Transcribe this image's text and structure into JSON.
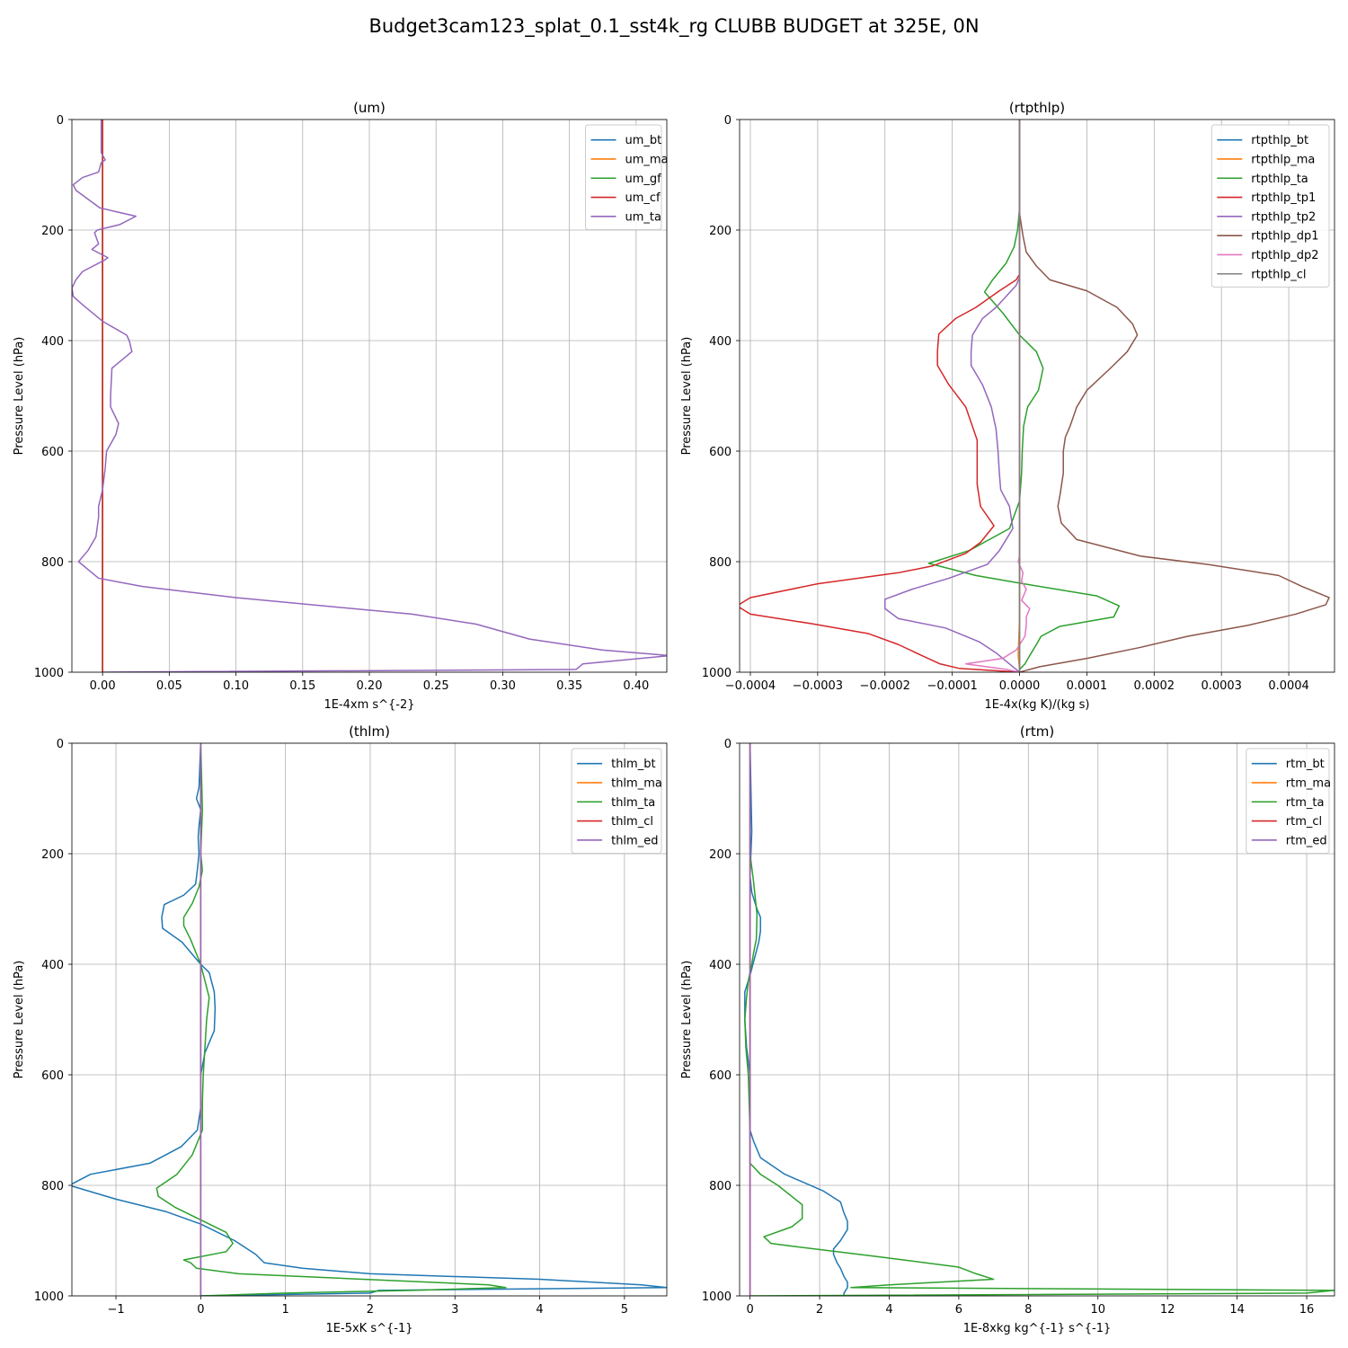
{
  "figure": {
    "suptitle": "Budget3cam123_splat_0.1_sst4k_rg CLUBB BUDGET at 325E, 0N"
  },
  "chart_data": [
    {
      "id": "um",
      "type": "line",
      "title": "(um)",
      "xlabel": "1E-4xm s^{-2}",
      "ylabel": "Pressure Level (hPa)",
      "xlim": [
        -0.023,
        0.423
      ],
      "ylim": [
        1000,
        0
      ],
      "xticks": [
        0.0,
        0.05,
        0.1,
        0.15,
        0.2,
        0.25,
        0.3,
        0.35,
        0.4
      ],
      "xtick_labels": [
        "0.00",
        "0.05",
        "0.10",
        "0.15",
        "0.20",
        "0.25",
        "0.30",
        "0.35",
        "0.40"
      ],
      "yticks": [
        0,
        200,
        400,
        600,
        800,
        1000
      ],
      "ytick_labels": [
        "0",
        "200",
        "400",
        "600",
        "800",
        "1000"
      ],
      "grid": true,
      "legend": "top-right",
      "series": [
        {
          "name": "um_bt",
          "color": "#1f77b4",
          "y": [
            0,
            1000
          ],
          "x": [
            0,
            0
          ]
        },
        {
          "name": "um_ma",
          "color": "#ff7f0e",
          "y": [
            0,
            1000
          ],
          "x": [
            0,
            0
          ]
        },
        {
          "name": "um_gf",
          "color": "#2ca02c",
          "y": [
            0,
            1000
          ],
          "x": [
            0,
            0
          ]
        },
        {
          "name": "um_cf",
          "color": "#d62728",
          "y": [
            0,
            1000
          ],
          "x": [
            0,
            0
          ]
        },
        {
          "name": "um_ta",
          "color": "#9467bd",
          "y": [
            0,
            60,
            73,
            78,
            95,
            105,
            118,
            128,
            160,
            175,
            190,
            200,
            205,
            225,
            235,
            250,
            255,
            275,
            290,
            305,
            320,
            335,
            365,
            390,
            400,
            420,
            450,
            500,
            520,
            550,
            570,
            600,
            630,
            670,
            700,
            720,
            755,
            780,
            800,
            830,
            845,
            865,
            895,
            913,
            940,
            960,
            970,
            985,
            995,
            1000
          ],
          "x": [
            -0.001,
            -0.001,
            0.002,
            -0.001,
            -0.003,
            -0.015,
            -0.022,
            -0.02,
            -0.002,
            0.025,
            0.013,
            -0.004,
            -0.006,
            -0.003,
            -0.008,
            0.004,
            0.001,
            -0.015,
            -0.02,
            -0.023,
            -0.022,
            -0.015,
            0.0,
            0.018,
            0.02,
            0.022,
            0.007,
            0.006,
            0.006,
            0.012,
            0.01,
            0.003,
            0.002,
            0.0,
            -0.003,
            -0.003,
            -0.005,
            -0.011,
            -0.018,
            -0.003,
            0.03,
            0.1,
            0.232,
            0.28,
            0.32,
            0.375,
            0.425,
            0.36,
            0.355,
            0.0
          ]
        }
      ]
    },
    {
      "id": "rtpthlp",
      "type": "line",
      "title": "(rtpthlp)",
      "xlabel": "1E-4x(kg K)/(kg s)",
      "ylabel": "Pressure Level (hPa)",
      "xlim": [
        -0.000416,
        0.000468
      ],
      "ylim": [
        1000,
        0
      ],
      "xticks": [
        -0.0004,
        -0.0003,
        -0.0002,
        -0.0001,
        0.0,
        0.0001,
        0.0002,
        0.0003,
        0.0004
      ],
      "xtick_labels": [
        "−0.0004",
        "−0.0003",
        "−0.0002",
        "−0.0001",
        "0.0000",
        "0.0001",
        "0.0002",
        "0.0003",
        "0.0004"
      ],
      "yticks": [
        0,
        200,
        400,
        600,
        800,
        1000
      ],
      "ytick_labels": [
        "0",
        "200",
        "400",
        "600",
        "800",
        "1000"
      ],
      "grid": true,
      "legend": "top-right",
      "series": [
        {
          "name": "rtpthlp_bt",
          "color": "#1f77b4",
          "y": [
            0,
            1000
          ],
          "x": [
            0,
            0
          ]
        },
        {
          "name": "rtpthlp_ma",
          "color": "#ff7f0e",
          "y": [
            0,
            830,
            900,
            970,
            995,
            1000
          ],
          "x": [
            0,
            0,
            0,
            -2e-06,
            0,
            0
          ]
        },
        {
          "name": "rtpthlp_ta",
          "color": "#2ca02c",
          "y": [
            0,
            160,
            200,
            230,
            260,
            290,
            312,
            350,
            390,
            420,
            450,
            490,
            520,
            555,
            600,
            640,
            690,
            740,
            780,
            803,
            825,
            840,
            862,
            880,
            900,
            917,
            935,
            950,
            970,
            985,
            995,
            1000
          ],
          "x": [
            0,
            0,
            -3e-06,
            -8e-06,
            -2e-05,
            -4e-05,
            -5.2e-05,
            -2.5e-05,
            0.0,
            2.5e-05,
            3.5e-05,
            2.8e-05,
            1.2e-05,
            6e-06,
            4e-06,
            3e-06,
            0.0,
            -1.5e-05,
            -7.5e-05,
            -0.000135,
            -6.5e-05,
            6e-06,
            0.000115,
            0.000148,
            0.00014,
            6e-05,
            3.2e-05,
            2.5e-05,
            1.5e-05,
            8e-06,
            0.0,
            0.0
          ]
        },
        {
          "name": "rtpthlp_tp1",
          "color": "#d62728",
          "y": [
            0,
            280,
            290,
            310,
            340,
            360,
            388,
            420,
            445,
            480,
            520,
            580,
            620,
            660,
            700,
            735,
            765,
            785,
            808,
            820,
            840,
            865,
            880,
            895,
            912,
            930,
            950,
            970,
            985,
            993,
            1000
          ],
          "x": [
            0,
            0,
            -5e-06,
            -3e-05,
            -6.5e-05,
            -9.5e-05,
            -0.00012,
            -0.000122,
            -0.000122,
            -0.000105,
            -8e-05,
            -6.3e-05,
            -6.3e-05,
            -6.3e-05,
            -5.8e-05,
            -3.8e-05,
            -5.8e-05,
            -8e-05,
            -0.00013,
            -0.00018,
            -0.0003,
            -0.0004,
            -0.00042,
            -0.0004,
            -0.00031,
            -0.000225,
            -0.00018,
            -0.000145,
            -0.000118,
            -9e-05,
            0.0
          ]
        },
        {
          "name": "rtpthlp_tp2",
          "color": "#9467bd",
          "y": [
            0,
            285,
            300,
            340,
            360,
            390,
            420,
            445,
            480,
            520,
            560,
            600,
            640,
            670,
            700,
            740,
            780,
            805,
            830,
            850,
            868,
            885,
            903,
            920,
            945,
            965,
            985,
            995,
            1000
          ],
          "x": [
            0,
            0,
            -5e-06,
            -3.5e-05,
            -5.5e-05,
            -7e-05,
            -7.2e-05,
            -7.2e-05,
            -5.5e-05,
            -4.2e-05,
            -3.5e-05,
            -3.2e-05,
            -3e-05,
            -2.8e-05,
            -1.5e-05,
            -1e-05,
            -3e-05,
            -4.8e-05,
            -0.000105,
            -0.00016,
            -0.0002,
            -0.0002,
            -0.00018,
            -0.00011,
            -6e-05,
            -3.5e-05,
            -1.5e-05,
            -5e-06,
            0.0
          ]
        },
        {
          "name": "rtpthlp_dp1",
          "color": "#8c564b",
          "y": [
            0,
            170,
            210,
            240,
            265,
            290,
            310,
            340,
            370,
            390,
            420,
            450,
            490,
            520,
            555,
            575,
            600,
            640,
            680,
            700,
            730,
            760,
            790,
            805,
            825,
            845,
            865,
            878,
            895,
            915,
            935,
            955,
            975,
            990,
            1000
          ],
          "x": [
            0,
            0,
            5e-06,
            1e-05,
            2.5e-05,
            4.5e-05,
            0.0001,
            0.000145,
            0.000168,
            0.000175,
            0.00016,
            0.000135,
            0.0001,
            8.5e-05,
            7.5e-05,
            6.8e-05,
            6.5e-05,
            6.5e-05,
            6e-05,
            5.7e-05,
            6.2e-05,
            8.5e-05,
            0.00018,
            0.00028,
            0.000385,
            0.00042,
            0.00046,
            0.000455,
            0.00041,
            0.00034,
            0.00025,
            0.00018,
            0.0001,
            3e-05,
            0.0
          ]
        },
        {
          "name": "rtpthlp_dp2",
          "color": "#e377c2",
          "y": [
            0,
            790,
            800,
            820,
            835,
            850,
            870,
            885,
            900,
            915,
            935,
            960,
            975,
            985,
            995,
            1000
          ],
          "x": [
            0,
            0,
            -2e-06,
            5e-06,
            3e-06,
            1e-05,
            3e-06,
            1.5e-05,
            1e-05,
            1e-05,
            8e-06,
            -5e-06,
            -2.5e-05,
            -8e-05,
            -2e-05,
            0.0
          ]
        },
        {
          "name": "rtpthlp_cl",
          "color": "#7f7f7f",
          "y": [
            0,
            1000
          ],
          "x": [
            0,
            0
          ]
        }
      ]
    },
    {
      "id": "thlm",
      "type": "line",
      "title": "(thlm)",
      "xlabel": "1E-5xK s^{-1}",
      "ylabel": "Pressure Level (hPa)",
      "xlim": [
        -1.52,
        5.5
      ],
      "ylim": [
        1000,
        0
      ],
      "xticks": [
        -1,
        0,
        1,
        2,
        3,
        4,
        5
      ],
      "xtick_labels": [
        "−1",
        "0",
        "1",
        "2",
        "3",
        "4",
        "5"
      ],
      "yticks": [
        0,
        200,
        400,
        600,
        800,
        1000
      ],
      "ytick_labels": [
        "0",
        "200",
        "400",
        "600",
        "800",
        "1000"
      ],
      "grid": true,
      "legend": "top-right",
      "series": [
        {
          "name": "thlm_bt",
          "color": "#1f77b4",
          "y": [
            0,
            80,
            100,
            120,
            150,
            170,
            200,
            230,
            255,
            275,
            292,
            315,
            335,
            360,
            400,
            415,
            450,
            480,
            520,
            560,
            600,
            660,
            700,
            730,
            760,
            780,
            800,
            825,
            848,
            870,
            900,
            925,
            940,
            950,
            960,
            970,
            980,
            985,
            990,
            995,
            1000
          ],
          "x": [
            0,
            -0.02,
            -0.05,
            0.0,
            -0.02,
            -0.03,
            -0.02,
            -0.04,
            -0.06,
            -0.2,
            -0.43,
            -0.46,
            -0.45,
            -0.22,
            0.0,
            0.1,
            0.16,
            0.17,
            0.16,
            0.05,
            0.0,
            0.0,
            -0.04,
            -0.23,
            -0.6,
            -1.3,
            -1.55,
            -1.0,
            -0.4,
            0.0,
            0.4,
            0.65,
            0.75,
            1.2,
            2.0,
            4.0,
            5.2,
            5.5,
            2.1,
            2.0,
            0.0
          ]
        },
        {
          "name": "thlm_ma",
          "color": "#ff7f0e",
          "y": [
            0,
            1000
          ],
          "x": [
            0,
            0
          ]
        },
        {
          "name": "thlm_ta",
          "color": "#2ca02c",
          "y": [
            0,
            120,
            200,
            230,
            260,
            290,
            315,
            330,
            355,
            400,
            430,
            460,
            500,
            550,
            600,
            650,
            700,
            745,
            780,
            805,
            820,
            840,
            870,
            885,
            905,
            920,
            935,
            940,
            950,
            960,
            980,
            985,
            990,
            995,
            1000
          ],
          "x": [
            0,
            0.02,
            0.0,
            0.02,
            -0.02,
            -0.1,
            -0.2,
            -0.2,
            -0.12,
            0.0,
            0.05,
            0.1,
            0.07,
            0.05,
            0.03,
            0.02,
            0.02,
            -0.1,
            -0.28,
            -0.52,
            -0.5,
            -0.3,
            0.1,
            0.3,
            0.38,
            0.3,
            -0.2,
            -0.12,
            -0.05,
            0.45,
            3.4,
            3.6,
            2.5,
            1.0,
            0.0
          ]
        },
        {
          "name": "thlm_cl",
          "color": "#d62728",
          "y": [
            0,
            1000
          ],
          "x": [
            0,
            0
          ]
        },
        {
          "name": "thlm_ed",
          "color": "#9467bd",
          "y": [
            0,
            1000
          ],
          "x": [
            0,
            0
          ]
        }
      ]
    },
    {
      "id": "rtm",
      "type": "line",
      "title": "(rtm)",
      "xlabel": "1E-8xkg kg^{-1} s^{-1}",
      "ylabel": "Pressure Level (hPa)",
      "xlim": [
        -0.3,
        16.8
      ],
      "ylim": [
        1000,
        0
      ],
      "xticks": [
        0,
        2,
        4,
        6,
        8,
        10,
        12,
        14,
        16
      ],
      "xtick_labels": [
        "0",
        "2",
        "4",
        "6",
        "8",
        "10",
        "12",
        "14",
        "16"
      ],
      "yticks": [
        0,
        200,
        400,
        600,
        800,
        1000
      ],
      "ytick_labels": [
        "0",
        "200",
        "400",
        "600",
        "800",
        "1000"
      ],
      "grid": true,
      "legend": "top-right",
      "series": [
        {
          "name": "rtm_bt",
          "color": "#1f77b4",
          "y": [
            0,
            160,
            240,
            270,
            300,
            315,
            340,
            360,
            420,
            450,
            500,
            550,
            600,
            650,
            700,
            720,
            750,
            780,
            810,
            830,
            850,
            865,
            880,
            900,
            915,
            925,
            940,
            950,
            965,
            975,
            985,
            995,
            1000
          ],
          "x": [
            0,
            0.05,
            0.0,
            0.05,
            0.2,
            0.3,
            0.3,
            0.25,
            0.0,
            -0.15,
            -0.15,
            -0.1,
            0.0,
            0.0,
            0.0,
            0.1,
            0.3,
            1.0,
            2.1,
            2.6,
            2.7,
            2.8,
            2.8,
            2.6,
            2.4,
            2.4,
            2.5,
            2.6,
            2.7,
            2.8,
            2.8,
            2.7,
            2.7
          ]
        },
        {
          "name": "rtm_ma",
          "color": "#ff7f0e",
          "y": [
            0,
            1000
          ],
          "x": [
            0,
            0
          ]
        },
        {
          "name": "rtm_ta",
          "color": "#2ca02c",
          "y": [
            0,
            200,
            250,
            280,
            310,
            355,
            380,
            400,
            430,
            460,
            500,
            550,
            600,
            700,
            760,
            780,
            800,
            835,
            860,
            875,
            893,
            905,
            910,
            930,
            948,
            960,
            970,
            975,
            980,
            985,
            990,
            995,
            1000
          ],
          "x": [
            0,
            0.0,
            0.1,
            0.15,
            0.2,
            0.18,
            0.1,
            0.05,
            -0.05,
            -0.1,
            -0.15,
            -0.12,
            -0.05,
            0.0,
            0.0,
            0.3,
            0.8,
            1.5,
            1.5,
            1.2,
            0.4,
            0.6,
            1.2,
            3.8,
            6.0,
            6.5,
            7.0,
            5.5,
            4.0,
            2.9,
            16.8,
            16.0,
            0.0
          ]
        },
        {
          "name": "rtm_cl",
          "color": "#d62728",
          "y": [
            0,
            1000
          ],
          "x": [
            0,
            0
          ]
        },
        {
          "name": "rtm_ed",
          "color": "#9467bd",
          "y": [
            0,
            1000
          ],
          "x": [
            0,
            0
          ]
        }
      ]
    }
  ]
}
